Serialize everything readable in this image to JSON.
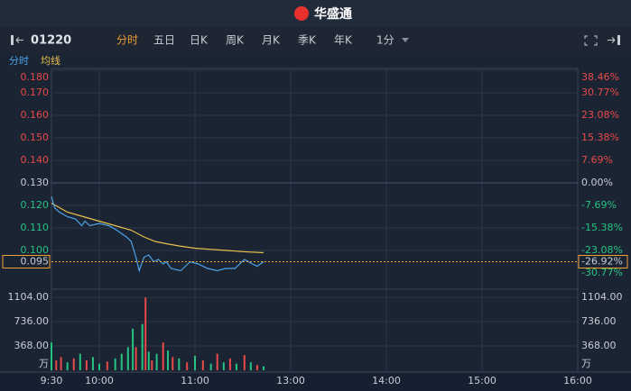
{
  "header": {
    "logo": "华盛通"
  },
  "toolbar": {
    "symbol": "01220",
    "tabs": [
      "分时",
      "五日",
      "日K",
      "周K",
      "月K",
      "季K",
      "年K",
      "1分"
    ]
  },
  "chart_data": [
    {
      "type": "line",
      "up_color": "#e84a4a",
      "down_color": "#26c281",
      "flat_color": "#c8ccd4",
      "xlim": [
        0,
        330
      ],
      "ylim": [
        0.084,
        0.18
      ],
      "yticks": [
        {
          "value": 0.18,
          "label": "0.180"
        },
        {
          "value": 0.17,
          "label": "0.170"
        },
        {
          "value": 0.16,
          "label": "0.160"
        },
        {
          "value": 0.15,
          "label": "0.150"
        },
        {
          "value": 0.14,
          "label": "0.140"
        },
        {
          "value": 0.13,
          "label": "0.130"
        },
        {
          "value": 0.12,
          "label": "0.120"
        },
        {
          "value": 0.11,
          "label": "0.110"
        },
        {
          "value": 0.1,
          "label": "0.100"
        }
      ],
      "y2lim": [
        -35.38,
        38.46
      ],
      "y2ticks": [
        {
          "value": 38.46,
          "label": "38.46%"
        },
        {
          "value": 30.77,
          "label": "30.77%"
        },
        {
          "value": 23.08,
          "label": "23.08%"
        },
        {
          "value": 15.38,
          "label": "15.38%"
        },
        {
          "value": 7.69,
          "label": "7.69%"
        },
        {
          "value": 0,
          "label": "0.00%"
        },
        {
          "value": -7.69,
          "label": "-7.69%"
        },
        {
          "value": -15.38,
          "label": "-15.38%"
        },
        {
          "value": -23.08,
          "label": "-23.08%"
        },
        {
          "value": -30.77,
          "label": "-30.77%"
        }
      ],
      "last_price": 0.095,
      "last_change": {
        "value": -26.92,
        "label": "-26.92%"
      },
      "last_color": "#f0a030",
      "series": [
        {
          "name": "分时",
          "color": "#4da3e8",
          "x": [
            0,
            2,
            5,
            10,
            15,
            19,
            21,
            24,
            30,
            36,
            41,
            47,
            50,
            53,
            55,
            58,
            61,
            64,
            67,
            70,
            72,
            75,
            81,
            84,
            87,
            92,
            98,
            104,
            109,
            115,
            121,
            126,
            129,
            133
          ],
          "values": [
            0.124,
            0.119,
            0.117,
            0.115,
            0.114,
            0.111,
            0.113,
            0.111,
            0.112,
            0.111,
            0.109,
            0.106,
            0.104,
            0.097,
            0.091,
            0.097,
            0.098,
            0.095,
            0.096,
            0.094,
            0.095,
            0.092,
            0.091,
            0.093,
            0.095,
            0.094,
            0.092,
            0.091,
            0.092,
            0.092,
            0.096,
            0.094,
            0.093,
            0.095
          ]
        },
        {
          "name": "均线",
          "color": "#e8c04d",
          "x": [
            0,
            10,
            20,
            30,
            40,
            50,
            58,
            65,
            72,
            80,
            90,
            100,
            110,
            120,
            133
          ],
          "values": [
            0.121,
            0.117,
            0.115,
            0.113,
            0.111,
            0.109,
            0.106,
            0.104,
            0.103,
            0.102,
            0.101,
            0.1005,
            0.1,
            0.0995,
            0.099
          ]
        }
      ]
    },
    {
      "type": "bar",
      "xlim": [
        0,
        330
      ],
      "xticks": [
        {
          "value": 0,
          "label": "9:30"
        },
        {
          "value": 30,
          "label": "10:00"
        },
        {
          "value": 90,
          "label": "11:00"
        },
        {
          "value": 150,
          "label": "13:00"
        },
        {
          "value": 210,
          "label": "14:00"
        },
        {
          "value": 270,
          "label": "15:00"
        },
        {
          "value": 330,
          "label": "16:00"
        }
      ],
      "ylim": [
        0,
        1104
      ],
      "yticks": [
        {
          "value": 1104,
          "label": "1104.00"
        },
        {
          "value": 736,
          "label": "736.00"
        },
        {
          "value": 368,
          "label": "368.00"
        }
      ],
      "unit": "万",
      "x": [
        0,
        3,
        6,
        10,
        14,
        18,
        22,
        26,
        30,
        35,
        40,
        44,
        48,
        51,
        53,
        57,
        59,
        61,
        63,
        66,
        70,
        73,
        76,
        80,
        85,
        90,
        95,
        100,
        104,
        108,
        112,
        116,
        121,
        125,
        129,
        133
      ],
      "values": [
        420,
        150,
        200,
        120,
        180,
        250,
        150,
        200,
        100,
        130,
        180,
        250,
        350,
        630,
        350,
        700,
        1100,
        280,
        150,
        250,
        420,
        300,
        200,
        180,
        120,
        220,
        150,
        100,
        250,
        120,
        180,
        100,
        230,
        120,
        80,
        60
      ],
      "colors": [
        "#26c281",
        "#e84a4a",
        "#e84a4a",
        "#26c281",
        "#e84a4a",
        "#26c281",
        "#e84a4a",
        "#26c281",
        "#26c281",
        "#e84a4a",
        "#26c281",
        "#26c281",
        "#26c281",
        "#26c281",
        "#e84a4a",
        "#26c281",
        "#e84a4a",
        "#26c281",
        "#e84a4a",
        "#26c281",
        "#e84a4a",
        "#26c281",
        "#e84a4a",
        "#26c281",
        "#e84a4a",
        "#26c281",
        "#e84a4a",
        "#26c281",
        "#e84a4a",
        "#26c281",
        "#e84a4a",
        "#26c281",
        "#e84a4a",
        "#26c281",
        "#e84a4a",
        "#26c281"
      ]
    }
  ]
}
